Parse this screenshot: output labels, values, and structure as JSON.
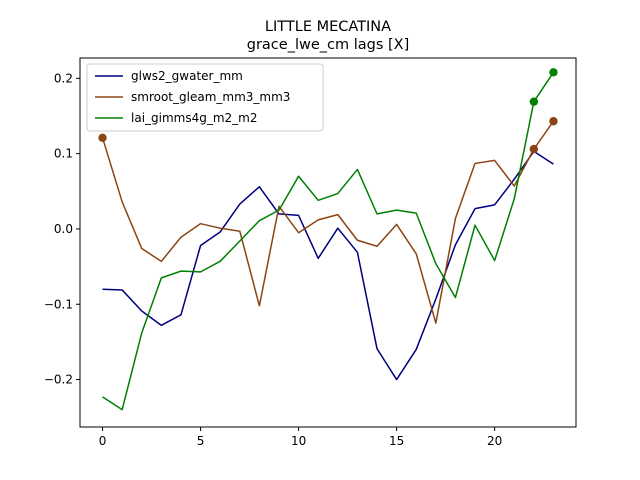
{
  "chart_data": {
    "type": "line",
    "title": "LITTLE MECATINA",
    "subtitle": "grace_lwe_cm lags [X]",
    "xlabel": "",
    "ylabel": "",
    "xlim": [
      -1.15,
      24.15
    ],
    "ylim": [
      -0.263,
      0.227
    ],
    "xticks": [
      0,
      5,
      10,
      15,
      20
    ],
    "yticks": [
      -0.2,
      -0.1,
      0.0,
      0.1,
      0.2
    ],
    "ytick_labels": [
      "−0.2",
      "−0.1",
      "0.0",
      "0.1",
      "0.2"
    ],
    "grid": false,
    "legend_position": "top-left",
    "x": [
      0,
      1,
      2,
      3,
      4,
      5,
      6,
      7,
      8,
      9,
      10,
      11,
      12,
      13,
      14,
      15,
      16,
      17,
      18,
      19,
      20,
      21,
      22,
      23
    ],
    "series": [
      {
        "name": "glws2_gwater_mm",
        "color": "#00007f",
        "values": [
          -0.08,
          -0.081,
          -0.109,
          -0.128,
          -0.114,
          -0.022,
          -0.004,
          0.033,
          0.056,
          0.02,
          0.018,
          -0.039,
          0.001,
          -0.031,
          -0.159,
          -0.2,
          -0.16,
          -0.093,
          -0.021,
          0.027,
          0.032,
          0.066,
          0.103,
          0.086
        ],
        "markers": []
      },
      {
        "name": "smroot_gleam_mm3_mm3",
        "color": "#8b4513",
        "values": [
          0.121,
          0.036,
          -0.026,
          -0.043,
          -0.011,
          0.007,
          0.001,
          -0.003,
          -0.102,
          0.03,
          -0.005,
          0.012,
          0.019,
          -0.015,
          -0.023,
          0.006,
          -0.033,
          -0.125,
          0.014,
          0.087,
          0.091,
          0.057,
          0.106,
          0.143
        ],
        "markers": [
          0,
          22,
          23
        ]
      },
      {
        "name": "lai_gimms4g_m2_m2",
        "color": "#007f00",
        "values": [
          -0.223,
          -0.24,
          -0.138,
          -0.065,
          -0.056,
          -0.057,
          -0.043,
          -0.016,
          0.011,
          0.025,
          0.07,
          0.038,
          0.047,
          0.079,
          0.02,
          0.025,
          0.021,
          -0.046,
          -0.091,
          0.005,
          -0.042,
          0.04,
          0.169,
          0.208
        ],
        "markers": [
          22,
          23
        ]
      }
    ]
  }
}
